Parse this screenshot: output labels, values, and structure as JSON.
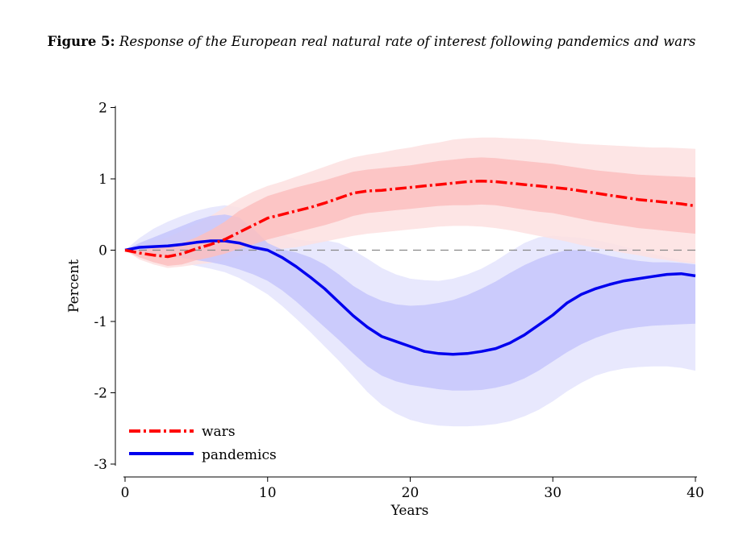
{
  "figure": {
    "label": "Figure 5:",
    "caption": "Response of the European real natural rate of interest following pandemics and wars"
  },
  "chart_data": {
    "type": "line",
    "xlabel": "Years",
    "ylabel": "Percent",
    "xlim": [
      0,
      40
    ],
    "ylim": [
      -3,
      2
    ],
    "xticks": [
      0,
      10,
      20,
      30,
      40
    ],
    "yticks": [
      -3,
      -2,
      -1,
      0,
      1,
      2
    ],
    "legend_position": "bottom-left",
    "reference_line": 0,
    "x": [
      0,
      1,
      2,
      3,
      4,
      5,
      6,
      7,
      8,
      9,
      10,
      11,
      12,
      13,
      14,
      15,
      16,
      17,
      18,
      19,
      20,
      21,
      22,
      23,
      24,
      25,
      26,
      27,
      28,
      29,
      30,
      31,
      32,
      33,
      34,
      35,
      36,
      37,
      38,
      39,
      40
    ],
    "series": [
      {
        "name": "wars",
        "color": "#ff0000",
        "style": "dash-dot",
        "values": [
          0,
          -0.04,
          -0.07,
          -0.09,
          -0.05,
          0.02,
          0.08,
          0.15,
          0.25,
          0.35,
          0.45,
          0.5,
          0.55,
          0.6,
          0.66,
          0.73,
          0.8,
          0.83,
          0.84,
          0.86,
          0.88,
          0.9,
          0.92,
          0.94,
          0.96,
          0.97,
          0.96,
          0.94,
          0.92,
          0.9,
          0.88,
          0.86,
          0.83,
          0.8,
          0.77,
          0.74,
          0.71,
          0.69,
          0.67,
          0.65,
          0.62
        ],
        "band68_upper": [
          0,
          0.0,
          0.03,
          0.05,
          0.1,
          0.18,
          0.28,
          0.4,
          0.55,
          0.66,
          0.76,
          0.82,
          0.88,
          0.93,
          0.98,
          1.04,
          1.1,
          1.13,
          1.15,
          1.17,
          1.19,
          1.22,
          1.25,
          1.27,
          1.29,
          1.3,
          1.29,
          1.27,
          1.25,
          1.23,
          1.21,
          1.18,
          1.15,
          1.12,
          1.1,
          1.08,
          1.06,
          1.05,
          1.04,
          1.03,
          1.02
        ],
        "band68_lower": [
          0,
          -0.1,
          -0.17,
          -0.22,
          -0.2,
          -0.14,
          -0.1,
          -0.05,
          0.02,
          0.08,
          0.15,
          0.2,
          0.25,
          0.3,
          0.35,
          0.41,
          0.48,
          0.52,
          0.54,
          0.56,
          0.58,
          0.6,
          0.62,
          0.63,
          0.63,
          0.64,
          0.63,
          0.6,
          0.57,
          0.54,
          0.52,
          0.48,
          0.44,
          0.4,
          0.37,
          0.34,
          0.31,
          0.29,
          0.27,
          0.25,
          0.23
        ],
        "band90_upper": [
          0,
          0.06,
          0.12,
          0.18,
          0.27,
          0.37,
          0.48,
          0.6,
          0.72,
          0.82,
          0.9,
          0.96,
          1.03,
          1.1,
          1.17,
          1.24,
          1.3,
          1.34,
          1.37,
          1.41,
          1.44,
          1.48,
          1.51,
          1.55,
          1.57,
          1.58,
          1.58,
          1.57,
          1.56,
          1.55,
          1.53,
          1.51,
          1.49,
          1.48,
          1.47,
          1.46,
          1.45,
          1.44,
          1.44,
          1.43,
          1.42
        ],
        "band90_lower": [
          0,
          -0.13,
          -0.2,
          -0.25,
          -0.23,
          -0.2,
          -0.18,
          -0.14,
          -0.08,
          -0.02,
          0.01,
          0.02,
          0.04,
          0.08,
          0.12,
          0.16,
          0.2,
          0.23,
          0.25,
          0.27,
          0.29,
          0.31,
          0.33,
          0.34,
          0.34,
          0.33,
          0.31,
          0.28,
          0.24,
          0.2,
          0.16,
          0.12,
          0.07,
          0.03,
          0.0,
          -0.04,
          -0.07,
          -0.11,
          -0.14,
          -0.17,
          -0.19
        ]
      },
      {
        "name": "pandemics",
        "color": "#0000ee",
        "style": "solid",
        "values": [
          0,
          0.04,
          0.05,
          0.06,
          0.08,
          0.11,
          0.13,
          0.13,
          0.1,
          0.04,
          0.0,
          -0.1,
          -0.23,
          -0.38,
          -0.54,
          -0.73,
          -0.92,
          -1.08,
          -1.21,
          -1.28,
          -1.35,
          -1.42,
          -1.45,
          -1.46,
          -1.45,
          -1.42,
          -1.38,
          -1.3,
          -1.19,
          -1.05,
          -0.91,
          -0.74,
          -0.62,
          -0.54,
          -0.48,
          -0.43,
          -0.4,
          -0.37,
          -0.34,
          -0.33,
          -0.36
        ],
        "band68_upper": [
          0,
          0.1,
          0.18,
          0.26,
          0.34,
          0.42,
          0.48,
          0.5,
          0.46,
          0.3,
          0.1,
          0.01,
          -0.03,
          -0.1,
          -0.2,
          -0.34,
          -0.5,
          -0.62,
          -0.71,
          -0.76,
          -0.78,
          -0.77,
          -0.74,
          -0.7,
          -0.63,
          -0.54,
          -0.44,
          -0.32,
          -0.21,
          -0.12,
          -0.05,
          0.0,
          0.0,
          -0.03,
          -0.08,
          -0.12,
          -0.15,
          -0.17,
          -0.17,
          -0.18,
          -0.2
        ],
        "band68_lower": [
          0,
          -0.02,
          -0.05,
          -0.08,
          -0.11,
          -0.14,
          -0.17,
          -0.21,
          -0.27,
          -0.34,
          -0.43,
          -0.56,
          -0.72,
          -0.9,
          -1.08,
          -1.26,
          -1.45,
          -1.63,
          -1.76,
          -1.84,
          -1.89,
          -1.92,
          -1.95,
          -1.97,
          -1.97,
          -1.96,
          -1.93,
          -1.88,
          -1.8,
          -1.69,
          -1.56,
          -1.43,
          -1.32,
          -1.23,
          -1.16,
          -1.11,
          -1.08,
          -1.06,
          -1.05,
          -1.04,
          -1.03
        ],
        "band90_upper": [
          0,
          0.17,
          0.3,
          0.4,
          0.48,
          0.55,
          0.6,
          0.63,
          0.6,
          0.48,
          0.35,
          0.22,
          0.15,
          0.13,
          0.14,
          0.1,
          0.0,
          -0.12,
          -0.25,
          -0.34,
          -0.4,
          -0.42,
          -0.43,
          -0.4,
          -0.34,
          -0.26,
          -0.15,
          -0.02,
          0.1,
          0.18,
          0.2,
          0.19,
          0.17,
          0.14,
          0.1,
          0.05,
          0.0,
          -0.05,
          -0.1,
          -0.14,
          -0.17
        ],
        "band90_lower": [
          0,
          -0.05,
          -0.1,
          -0.14,
          -0.18,
          -0.22,
          -0.26,
          -0.31,
          -0.39,
          -0.5,
          -0.62,
          -0.78,
          -0.96,
          -1.15,
          -1.35,
          -1.55,
          -1.77,
          -1.99,
          -2.17,
          -2.29,
          -2.38,
          -2.43,
          -2.46,
          -2.47,
          -2.47,
          -2.46,
          -2.44,
          -2.4,
          -2.33,
          -2.24,
          -2.12,
          -1.98,
          -1.86,
          -1.76,
          -1.7,
          -1.66,
          -1.64,
          -1.63,
          -1.63,
          -1.65,
          -1.69
        ]
      }
    ]
  },
  "colors": {
    "wars_band90": "#fde0e0",
    "wars_band68": "#fbc0c0",
    "pandemics_band90": "#e4e4fd",
    "pandemics_band68": "#c6c6fb",
    "zero_line": "#888888",
    "axis": "#000000"
  }
}
